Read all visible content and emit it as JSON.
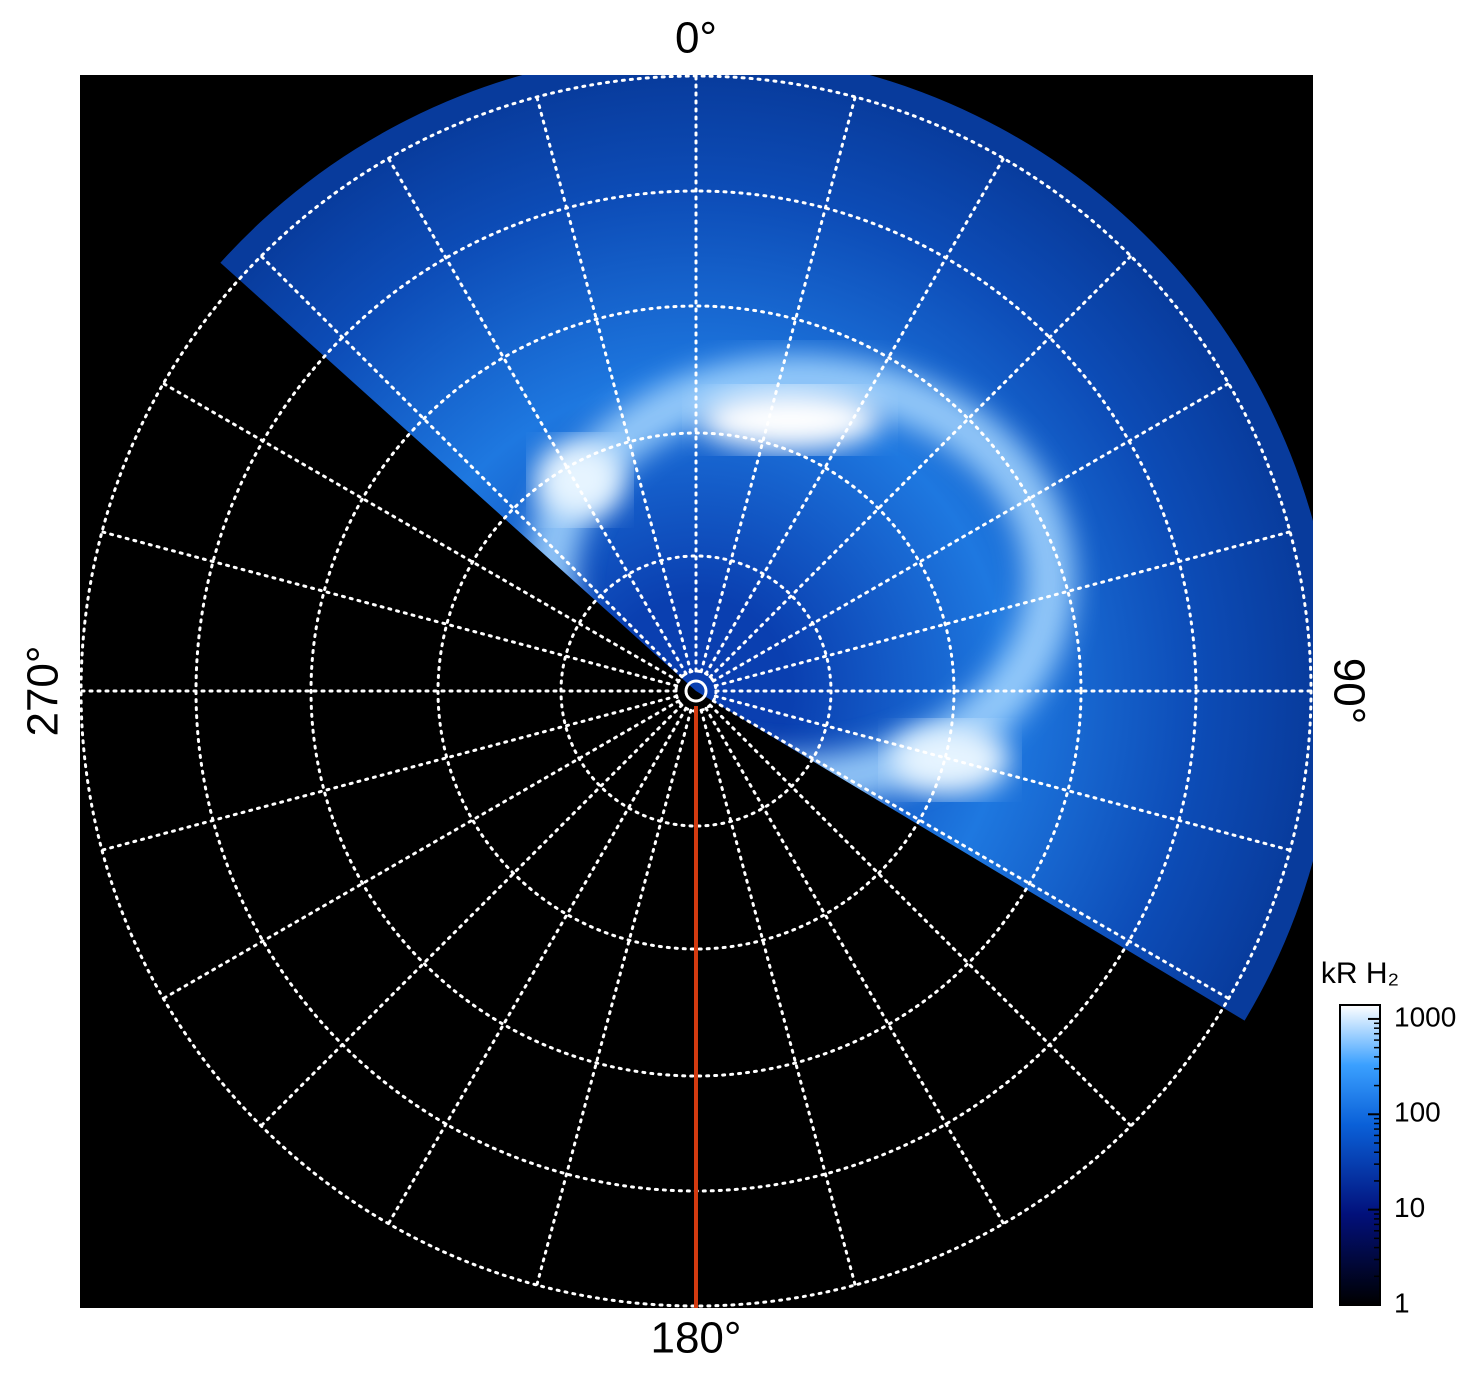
{
  "chart_data": {
    "type": "polar-image",
    "angle_ticks": [
      {
        "value": 0,
        "label": "0°"
      },
      {
        "value": 90,
        "label": "90°"
      },
      {
        "value": 180,
        "label": "180°"
      },
      {
        "value": 270,
        "label": "270°"
      }
    ],
    "colorbar": {
      "title": "kR H₂",
      "scale": "log",
      "lim": [
        1,
        1400
      ],
      "ticks": [
        1,
        10,
        100,
        1000
      ]
    }
  }
}
